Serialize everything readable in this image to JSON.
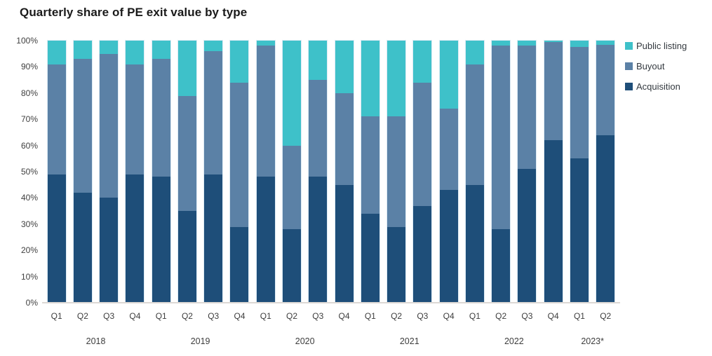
{
  "chart_data": {
    "type": "bar",
    "subtype": "stacked-100-percent-column",
    "title": "Quarterly share of PE exit value by type",
    "ylabel": "",
    "xlabel": "",
    "ylim": [
      0,
      100
    ],
    "grid": false,
    "yticks_bottom_to_top": [
      "0%",
      "10%",
      "20%",
      "30%",
      "40%",
      "50%",
      "60%",
      "70%",
      "80%",
      "90%",
      "100%"
    ],
    "quarters": [
      "Q1",
      "Q2",
      "Q3",
      "Q4",
      "Q1",
      "Q2",
      "Q3",
      "Q4",
      "Q1",
      "Q2",
      "Q3",
      "Q4",
      "Q1",
      "Q2",
      "Q3",
      "Q4",
      "Q1",
      "Q2",
      "Q3",
      "Q4",
      "Q1",
      "Q2"
    ],
    "year_groups": [
      {
        "label": "2018",
        "span": 4
      },
      {
        "label": "2019",
        "span": 4
      },
      {
        "label": "2020",
        "span": 4
      },
      {
        "label": "2021",
        "span": 4
      },
      {
        "label": "2022",
        "span": 4
      },
      {
        "label": "2023*",
        "span": 2
      }
    ],
    "stack_order_bottom_to_top": [
      "Acquisition",
      "Buyout",
      "Public listing"
    ],
    "series": [
      {
        "name": "Acquisition",
        "key": "acquisition",
        "color": "#1E4E79",
        "values": [
          49,
          42,
          40,
          49,
          48,
          35,
          49,
          29,
          48,
          28,
          48,
          45,
          34,
          29,
          37,
          43,
          45,
          28,
          51,
          62,
          55,
          64
        ]
      },
      {
        "name": "Buyout",
        "key": "buyout",
        "color": "#5B81A6",
        "values": [
          42,
          51,
          55,
          42,
          45,
          44,
          47,
          55,
          50,
          32,
          37,
          35,
          37,
          42,
          47,
          31,
          46,
          70,
          47,
          37.5,
          42.5,
          34.5
        ]
      },
      {
        "name": "Public listing",
        "key": "public_listing",
        "color": "#3EC1C9",
        "values": [
          9,
          7,
          5,
          9,
          7,
          21,
          4,
          16,
          2,
          40,
          15,
          20,
          29,
          29,
          16,
          26,
          9,
          2,
          2,
          0.5,
          2.5,
          1.5
        ]
      }
    ],
    "legend": {
      "position": "top-right",
      "items_top_to_bottom": [
        {
          "label": "Public listing",
          "color": "#3EC1C9"
        },
        {
          "label": "Buyout",
          "color": "#5B81A6"
        },
        {
          "label": "Acquisition",
          "color": "#1E4E79"
        }
      ]
    },
    "axis_text_color": "#3f3f3f",
    "baseline_color": "#dcd8d4"
  }
}
